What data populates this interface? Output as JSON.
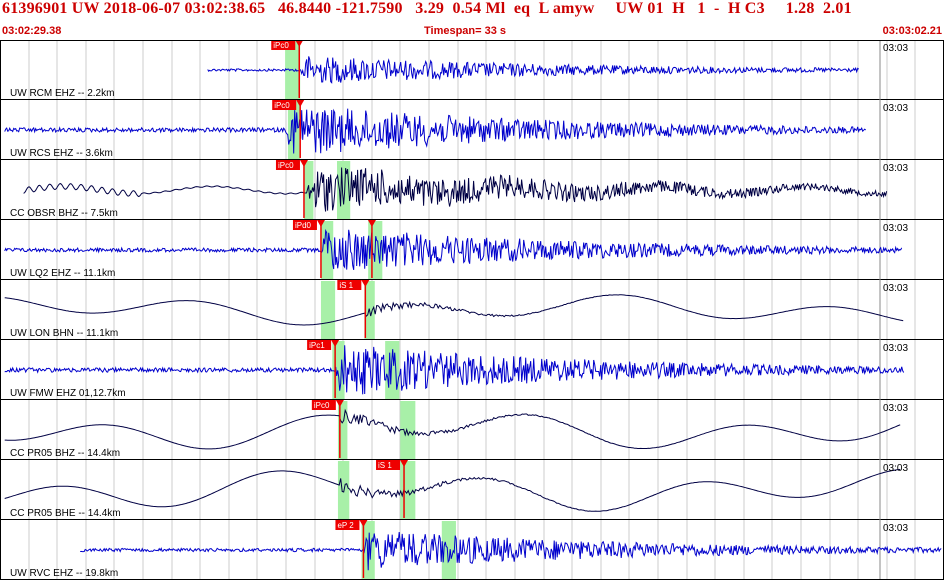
{
  "header": {
    "title_line": "61396901 UW 2018-06-07 03:02:38.65   46.8440 -121.7590   3.29  0.54 Ml  eq  L amyw     UW 01  H   1  -  H C3     1.28  2.01",
    "start_time": "03:02:29.38",
    "timespan": "Timespan=  33 s",
    "end_time": "03:03:02.21"
  },
  "colors": {
    "blue_trace": "#0000cc",
    "dark_trace": "#000044",
    "pick_red": "#ee0000",
    "window_green": "#a8f0a8",
    "grid": "#cccccc"
  },
  "channels": [
    {
      "label": "UW RCM EHZ -- 2.2km",
      "time_tick": "03:03",
      "color": "blue",
      "kind": "hf",
      "start": 0.22,
      "end": 0.91,
      "onset": 0.317,
      "amp": 0.25,
      "windows": [
        [
          0.302,
          0.318
        ]
      ],
      "picks": [
        {
          "label": "iPc0",
          "t": 0.317
        }
      ]
    },
    {
      "label": "UW RCS EHZ -- 3.6km",
      "time_tick": "03:03",
      "color": "blue",
      "kind": "hf",
      "start": 0.005,
      "end": 0.918,
      "onset": 0.303,
      "amp": 0.45,
      "windows": [
        [
          0.305,
          0.318
        ]
      ],
      "picks": [
        {
          "label": "iPc0",
          "t": 0.318
        }
      ]
    },
    {
      "label": "CC OBSR BHZ -- 7.5km",
      "time_tick": "03:03",
      "color": "dark",
      "kind": "mix",
      "start": 0.025,
      "end": 0.94,
      "onset": 0.325,
      "amp": 0.4,
      "windows": [
        [
          0.322,
          0.332
        ],
        [
          0.357,
          0.371
        ]
      ],
      "picks": [
        {
          "label": "iPc0",
          "t": 0.322
        }
      ]
    },
    {
      "label": "UW LQ2 EHZ -- 11.1km",
      "time_tick": "03:03",
      "color": "blue",
      "kind": "hf",
      "start": 0.005,
      "end": 0.956,
      "onset": 0.34,
      "amp": 0.4,
      "windows": [
        [
          0.34,
          0.353
        ],
        [
          0.39,
          0.405
        ]
      ],
      "picks": [
        {
          "label": "iPd0",
          "t": 0.34
        },
        {
          "label": "",
          "t": 0.394
        }
      ]
    },
    {
      "label": "UW LON BHN -- 11.1km",
      "time_tick": "03:03",
      "color": "dark",
      "kind": "lf",
      "start": 0.005,
      "end": 0.958,
      "onset": 0.387,
      "amp": 0.3,
      "windows": [
        [
          0.34,
          0.355
        ],
        [
          0.386,
          0.397
        ]
      ],
      "picks": [
        {
          "label": "iS 1",
          "t": 0.387
        }
      ]
    },
    {
      "label": "UW FMW EHZ 01,12.7km",
      "time_tick": "03:03",
      "color": "blue",
      "kind": "hf",
      "start": 0.005,
      "end": 0.958,
      "onset": 0.355,
      "amp": 0.45,
      "windows": [
        [
          0.352,
          0.365
        ],
        [
          0.408,
          0.423
        ]
      ],
      "picks": [
        {
          "label": "iPc1",
          "t": 0.355
        }
      ]
    },
    {
      "label": "CC PR05 BHZ -- 14.4km",
      "time_tick": "03:03",
      "color": "dark",
      "kind": "lf",
      "start": 0.005,
      "end": 0.955,
      "onset": 0.36,
      "amp": 0.4,
      "windows": [
        [
          0.358,
          0.368
        ],
        [
          0.424,
          0.44
        ]
      ],
      "picks": [
        {
          "label": "iPc0",
          "t": 0.36
        }
      ]
    },
    {
      "label": "CC PR05 BHE -- 14.4km",
      "time_tick": "03:03",
      "color": "dark",
      "kind": "lf",
      "start": 0.005,
      "end": 0.955,
      "onset": 0.36,
      "amp": 0.42,
      "windows": [
        [
          0.358,
          0.37
        ],
        [
          0.424,
          0.44
        ]
      ],
      "picks": [
        {
          "label": "iS 1",
          "t": 0.428
        }
      ]
    },
    {
      "label": "UW RVC EHZ -- 19.8km",
      "time_tick": "03:03",
      "color": "blue",
      "kind": "hf",
      "start": 0.085,
      "end": 0.998,
      "onset": 0.385,
      "amp": 0.35,
      "windows": [
        [
          0.383,
          0.397
        ],
        [
          0.468,
          0.483
        ]
      ],
      "picks": [
        {
          "label": "eP 2",
          "t": 0.385
        }
      ]
    }
  ]
}
